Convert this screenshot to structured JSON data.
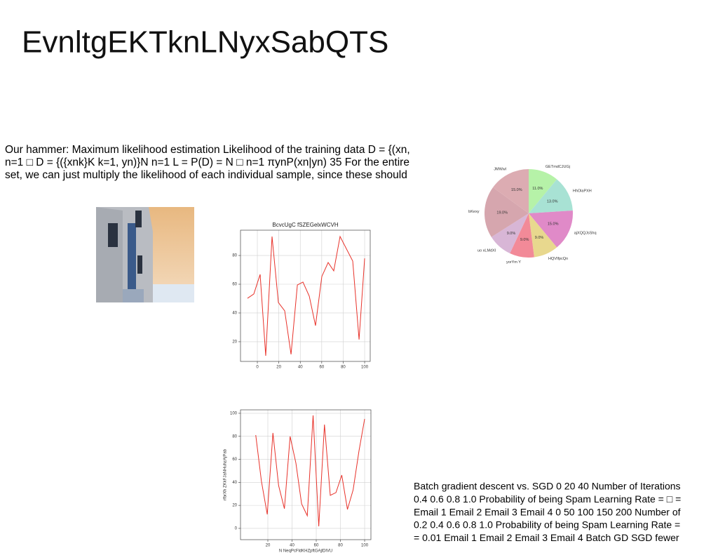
{
  "title": "EvnltgEKTknLNyxSabQTS",
  "body_text": [
    "Our hammer: Maximum likelihood estimation Likelihood of the training data D = {(xn,",
    "n=1 □ D = {({xnk}K k=1, yn)}N n=1 L = P(D) = N □ n=1 πynP(xn|yn) 35 For the entire",
    "set, we can just multiply the likelihood of each individual sample, since these should"
  ],
  "notes_text": [
    "Batch gradient descent vs. SGD 0 20 40 Number of Iterations",
    "0.4 0.6 0.8 1.0 Probability of being Spam Learning Rate = □ =",
    "Email 1 Email 2 Email 3 Email 4 0 50 100 150 200 Number of",
    "0.2 0.4 0.6 0.8 1.0 Probability of being Spam Learning Rate =",
    "= 0.01 Email 1 Email 2 Email 3 Email 4 Batch GD SGD fewer"
  ],
  "chart_data": [
    {
      "type": "line",
      "title": "BcvcUgC fSZEGelxWCVH",
      "color": "#e8322a",
      "grid": true,
      "x": [
        -9.2,
        -3.3,
        2.6,
        7.8,
        13.7,
        19.6,
        25.5,
        31.4,
        37.3,
        42.5,
        48.4,
        54.2,
        60.1,
        66,
        71.2,
        77.1,
        88.9,
        94.8,
        100
      ],
      "values": [
        50.2,
        53.2,
        66.8,
        10.2,
        93.2,
        47.3,
        41.5,
        11.2,
        59.5,
        61.5,
        51.7,
        31.2,
        65.4,
        75.1,
        69.3,
        93.2,
        76.1,
        21.5,
        78
      ],
      "xlim": [
        -15.7,
        105.2
      ],
      "ylim": [
        6.3,
        97.6
      ],
      "xticks": [
        0,
        20,
        40,
        60,
        80,
        100
      ],
      "yticks": [
        20,
        40,
        60,
        80
      ]
    },
    {
      "type": "line",
      "xlabel": "N NeqPcFldKHZpftGAjlDlVU",
      "ylabel": "rfbrXh ZKkFJaNHuhzAjPab",
      "color": "#e8322a",
      "grid": true,
      "x": [
        10,
        14.7,
        19.5,
        24.2,
        28.9,
        33.7,
        38.4,
        43.2,
        47.9,
        52.6,
        57.4,
        62.1,
        66.8,
        71.6,
        76.3,
        81.1,
        85.8,
        90.5,
        95.3,
        100
      ],
      "values": [
        81.1,
        40.9,
        12.2,
        82.9,
        37.2,
        17.1,
        79.9,
        56.7,
        21.3,
        11,
        98.2,
        1.8,
        90.2,
        28.7,
        31.1,
        46.3,
        16.5,
        33.5,
        67.1,
        95.1
      ],
      "xlim": [
        -2.6,
        105.2
      ],
      "ylim": [
        -9.8,
        103
      ],
      "xticks": [
        20,
        40,
        60,
        80,
        100
      ],
      "yticks": [
        0,
        20,
        40,
        60,
        80,
        100
      ]
    },
    {
      "type": "pie",
      "categories": [
        "GETmdCJUGj",
        "HhOlaPXH",
        "ajXQQJsShq",
        "HQVIfpcQn",
        "yorYm Y",
        "uo xLMdXI",
        "bKexy",
        "JMWwl"
      ],
      "values": [
        11,
        13,
        15,
        9,
        9,
        9,
        19,
        15
      ],
      "value_labels": [
        "11.0%",
        "13.0%",
        "15.0%",
        "9.0%",
        "9.0%",
        "9.0%",
        "19.0%",
        "15.0%"
      ],
      "colors": [
        "#b6f2a8",
        "#a8e2d4",
        "#e08ac8",
        "#e8d88e",
        "#f28a98",
        "#d8b6d6",
        "#d6a6ae",
        "#dcacb2"
      ]
    }
  ]
}
